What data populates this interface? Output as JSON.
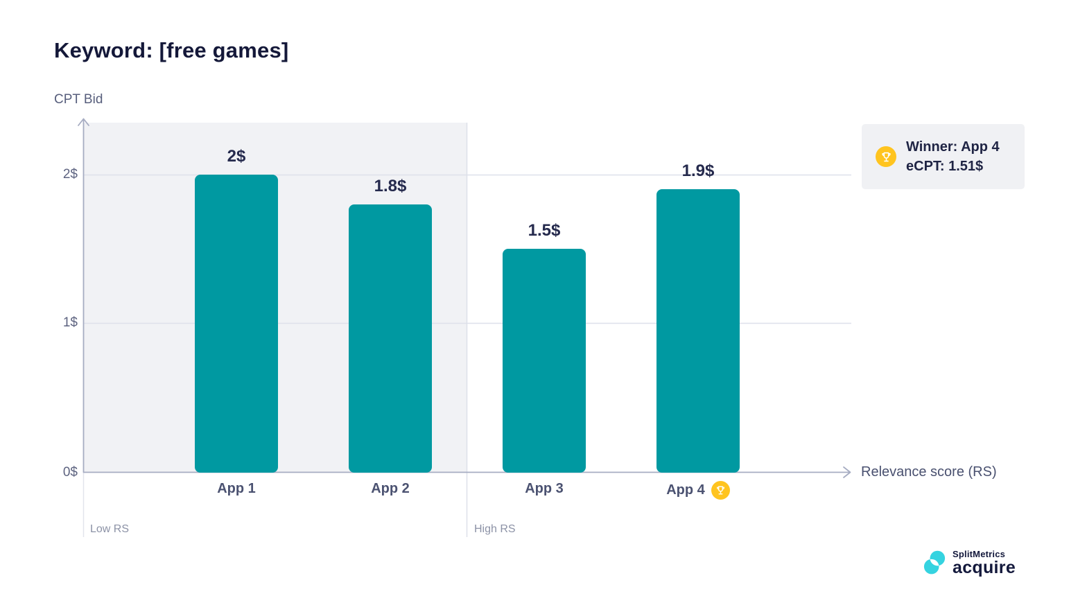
{
  "page": {
    "title": "Keyword: [free games]"
  },
  "chart_data": {
    "type": "bar",
    "title": "Keyword: [free games]",
    "categories": [
      "App 1",
      "App 2",
      "App 3",
      "App 4"
    ],
    "values": [
      2,
      1.8,
      1.5,
      1.9
    ],
    "value_labels": [
      "2$",
      "1.8$",
      "1.5$",
      "1.9$"
    ],
    "xlabel": "Relevance score (RS)",
    "ylabel": "CPT Bid",
    "ylim": [
      0,
      2.35
    ],
    "y_tick_values": [
      0,
      1,
      2
    ],
    "y_tick_labels": [
      "0$",
      "1$",
      "2$"
    ],
    "grid": "horizontal lines at 1$ and 2$",
    "zones": [
      {
        "label": "Low RS",
        "categories": [
          "App 1",
          "App 2"
        ],
        "shaded": true
      },
      {
        "label": "High RS",
        "categories": [
          "App 3",
          "App 4"
        ],
        "shaded": false
      }
    ],
    "winner_index": 3,
    "bar_color": "#0099A1"
  },
  "winner_box": {
    "line1": "Winner: App 4",
    "line2": "eCPT: 1.51$"
  },
  "colors": {
    "bar_teal": "#0099A1",
    "badge_yellow": "#FFC41F",
    "title_navy": "#141839",
    "panel_gray": "#F1F2F5",
    "axis_gray": "#A6ACC2",
    "gridline_gray": "#DEE0EA",
    "logo_cyan": "#35D3E0"
  },
  "logo": {
    "brand": "SplitMetrics",
    "product": "acquire"
  }
}
